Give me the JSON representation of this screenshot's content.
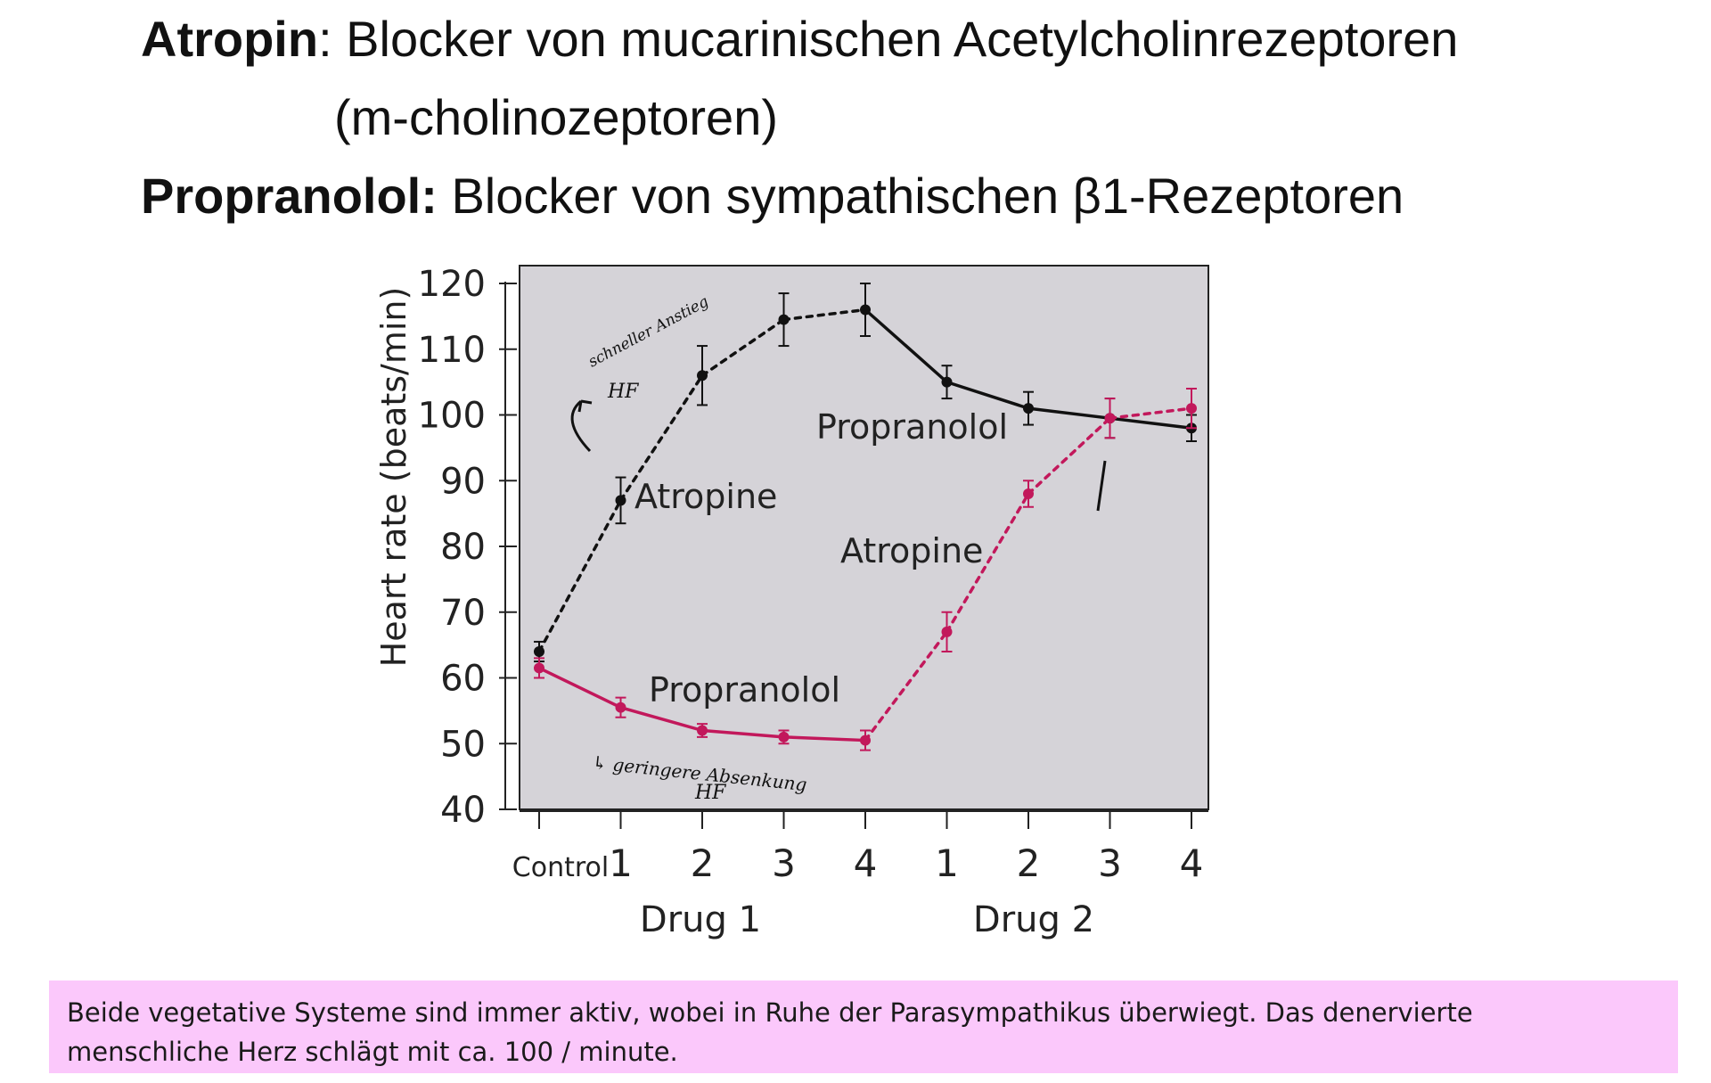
{
  "heading": {
    "line1_bold": "Atropin",
    "line1_rest": ": Blocker von mucarinischen  Acetylcholinrezeptoren",
    "line2": "(m-cholinozeptoren)",
    "line3_bold": "Propranolol:",
    "line3_rest": " Blocker von sympathischen β1-Rezeptoren"
  },
  "chart_data": {
    "type": "line",
    "ylabel": "Heart rate (beats/min)",
    "ylim": [
      40,
      120
    ],
    "yticks": [
      40,
      50,
      60,
      70,
      80,
      90,
      100,
      110,
      120
    ],
    "xticks": [
      "Control",
      "1",
      "2",
      "3",
      "4",
      "1",
      "2",
      "3",
      "4"
    ],
    "group_labels": [
      "Drug 1",
      "Drug 2"
    ],
    "grid": false,
    "series": [
      {
        "color": "#111111",
        "values": [
          64,
          87,
          106,
          114.5,
          116,
          105,
          101,
          99.5,
          98
        ],
        "errors": [
          1.5,
          3.5,
          4.5,
          4,
          4,
          2.5,
          2.5,
          3,
          2
        ],
        "style": [
          "dotted",
          "dotted",
          "dotted",
          "dotted",
          "solid",
          "solid",
          "solid",
          "solid"
        ]
      },
      {
        "color": "#c2185b",
        "values": [
          61.5,
          55.5,
          52,
          51,
          50.5,
          67,
          88,
          99.5,
          101
        ],
        "errors": [
          1.5,
          1.5,
          1,
          1,
          1.5,
          3,
          2,
          3,
          3
        ],
        "style": [
          "solid",
          "solid",
          "solid",
          "solid",
          "dotted",
          "dotted",
          "dotted",
          "dotted"
        ]
      }
    ],
    "annotations": {
      "atropine_1": "Atropine",
      "propranolol_1": "Propranolol",
      "propranolol_2": "Propranolol",
      "atropine_2": "Atropine"
    },
    "handwritten": {
      "rise_1": "schneller Anstieg",
      "rise_2": "HF",
      "fall_1": "↳ geringere Absenkung",
      "fall_2": "HF"
    },
    "colors": {
      "plot_bg": "#d5d3d8",
      "black_series": "#111111",
      "magenta_series": "#c2185b"
    }
  },
  "note": {
    "line1": "Beide vegetative Systeme sind immer aktiv, wobei in Ruhe der Parasympathikus überwiegt. Das denervierte",
    "line2": "menschliche Herz schlägt mit ca. 100 / minute."
  }
}
